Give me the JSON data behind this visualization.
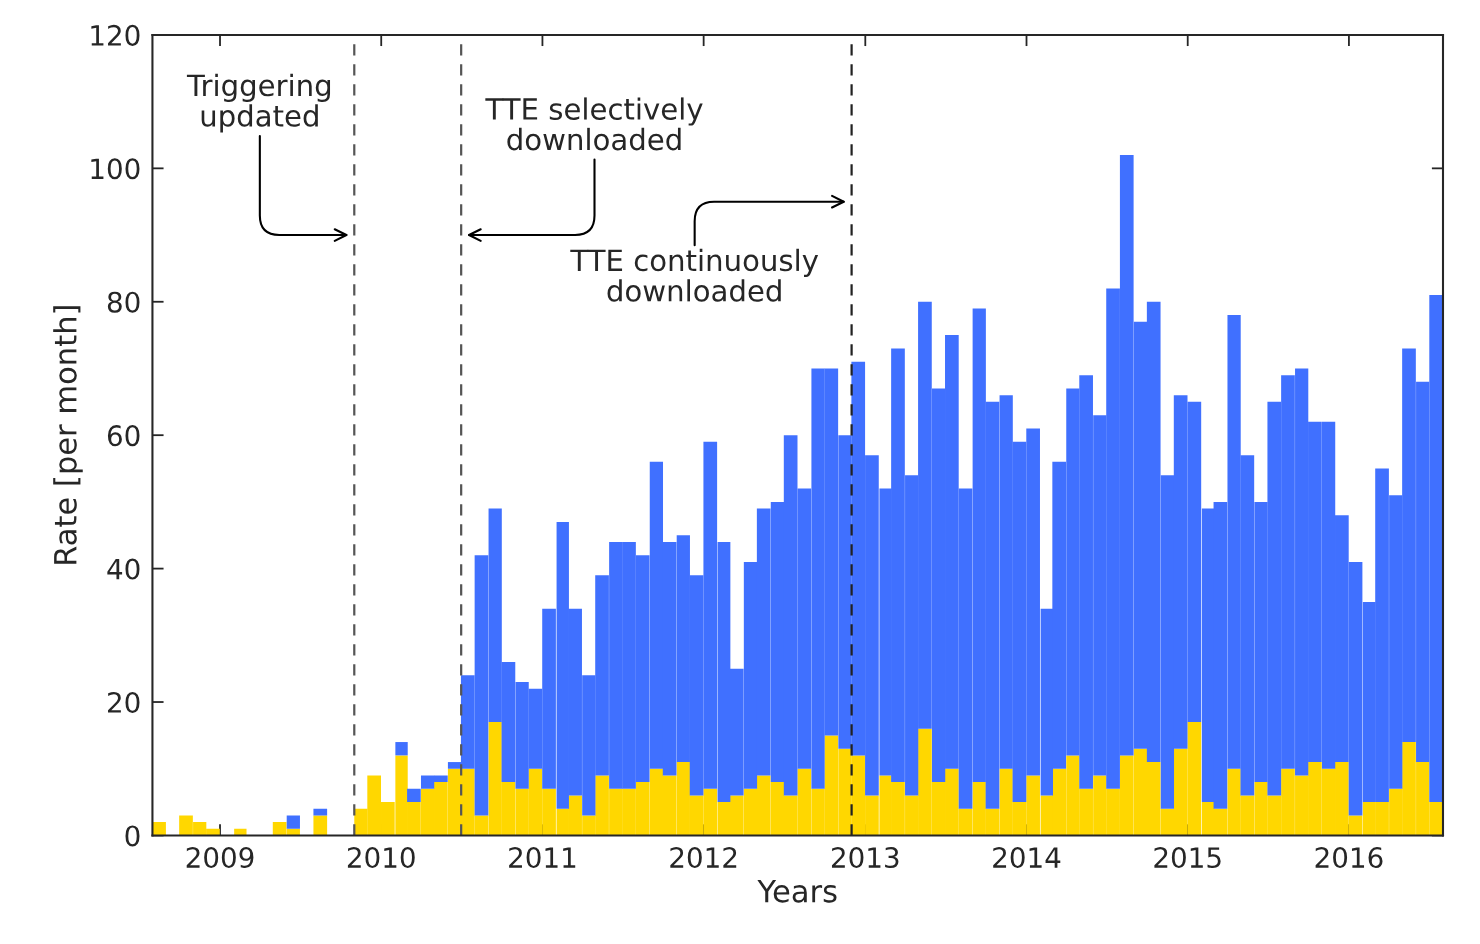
{
  "chart_data": {
    "type": "bar",
    "xlabel": "Years",
    "ylabel": "Rate [per month]",
    "x": [
      "2008-08-16",
      "2008-09-16",
      "2008-10-16",
      "2008-11-16",
      "2008-12-16",
      "2009-01-16",
      "2009-02-16",
      "2009-03-16",
      "2009-04-16",
      "2009-05-16",
      "2009-06-16",
      "2009-07-16",
      "2009-08-16",
      "2009-09-16",
      "2009-10-16",
      "2009-11-16",
      "2009-12-16",
      "2010-01-16",
      "2010-02-16",
      "2010-03-16",
      "2010-04-16",
      "2010-05-16",
      "2010-06-16",
      "2010-07-16",
      "2010-08-16",
      "2010-09-16",
      "2010-10-16",
      "2010-11-16",
      "2010-12-16",
      "2011-01-16",
      "2011-02-16",
      "2011-03-16",
      "2011-04-16",
      "2011-05-16",
      "2011-06-16",
      "2011-07-16",
      "2011-08-16",
      "2011-09-16",
      "2011-10-16",
      "2011-11-16",
      "2011-12-16",
      "2012-01-16",
      "2012-02-16",
      "2012-03-16",
      "2012-04-16",
      "2012-05-16",
      "2012-06-16",
      "2012-07-16",
      "2012-08-16",
      "2012-09-16",
      "2012-10-16",
      "2012-11-16",
      "2012-12-16",
      "2013-01-16",
      "2013-02-16",
      "2013-03-16",
      "2013-04-16",
      "2013-05-16",
      "2013-06-16",
      "2013-07-16",
      "2013-08-16",
      "2013-09-16",
      "2013-10-16",
      "2013-11-16",
      "2013-12-16",
      "2014-01-16",
      "2014-02-16",
      "2014-03-16",
      "2014-04-16",
      "2014-05-16",
      "2014-06-16",
      "2014-07-16",
      "2014-08-16",
      "2014-09-16",
      "2014-10-16",
      "2014-11-16",
      "2014-12-16",
      "2015-01-16",
      "2015-02-16",
      "2015-03-16",
      "2015-04-16",
      "2015-05-16",
      "2015-06-16",
      "2015-07-16",
      "2015-08-16",
      "2015-09-16",
      "2015-10-16",
      "2015-11-16",
      "2015-12-16",
      "2016-01-16",
      "2016-02-16",
      "2016-03-16",
      "2016-04-16",
      "2016-05-16",
      "2016-06-16",
      "2016-07-16"
    ],
    "stacked": true,
    "series": [
      {
        "color": "#ffd700",
        "values": [
          2,
          0,
          3,
          2,
          1,
          0,
          1,
          0,
          0,
          2,
          1,
          0,
          3,
          0,
          0,
          4,
          9,
          5,
          12,
          5,
          7,
          8,
          10,
          10,
          3,
          17,
          8,
          7,
          10,
          7,
          4,
          6,
          3,
          9,
          7,
          7,
          8,
          10,
          9,
          11,
          6,
          7,
          5,
          6,
          7,
          9,
          8,
          6,
          10,
          7,
          15,
          13,
          12,
          6,
          9,
          8,
          6,
          16,
          8,
          10,
          4,
          8,
          4,
          10,
          5,
          9,
          6,
          10,
          12,
          7,
          9,
          7,
          12,
          13,
          11,
          4,
          13,
          17,
          5,
          4,
          10,
          6,
          8,
          6,
          10,
          9,
          11,
          10,
          11,
          3,
          5,
          5,
          7,
          14,
          11,
          5
        ]
      },
      {
        "color": "#4070ff",
        "values": [
          0,
          0,
          0,
          0,
          0,
          0,
          0,
          0,
          0,
          0,
          2,
          0,
          1,
          0,
          0,
          0,
          0,
          0,
          2,
          2,
          2,
          1,
          1,
          14,
          39,
          32,
          18,
          16,
          12,
          27,
          43,
          28,
          21,
          30,
          37,
          37,
          34,
          46,
          35,
          34,
          33,
          52,
          39,
          19,
          34,
          40,
          42,
          54,
          42,
          63,
          55,
          47,
          59,
          51,
          43,
          65,
          48,
          64,
          59,
          65,
          48,
          71,
          61,
          56,
          54,
          52,
          28,
          46,
          55,
          62,
          54,
          75,
          90,
          64,
          69,
          50,
          53,
          48,
          44,
          46,
          68,
          51,
          42,
          59,
          59,
          61,
          51,
          52,
          37,
          38,
          30,
          50,
          44,
          59,
          57,
          76
        ]
      }
    ],
    "xlim": [
      "2008-08",
      "2016-08"
    ],
    "ylim": [
      0,
      120
    ],
    "xticks": [
      {
        "value": "2009",
        "label": "2009"
      },
      {
        "value": "2010",
        "label": "2010"
      },
      {
        "value": "2011",
        "label": "2011"
      },
      {
        "value": "2012",
        "label": "2012"
      },
      {
        "value": "2013",
        "label": "2013"
      },
      {
        "value": "2014",
        "label": "2014"
      },
      {
        "value": "2015",
        "label": "2015"
      },
      {
        "value": "2016",
        "label": "2016"
      }
    ],
    "yticks": [
      0,
      20,
      40,
      60,
      80,
      100,
      120
    ],
    "ref_lines": [
      {
        "axis": "x",
        "value": "2009-11",
        "color": "#555555",
        "line_style": "dashed"
      },
      {
        "axis": "x",
        "value": "2010-07",
        "color": "#555555",
        "line_style": "dashed"
      },
      {
        "axis": "x",
        "value": "2012-12",
        "color": "#222222",
        "line_style": "dashed"
      }
    ],
    "annotations": [
      "Triggering\nupdated",
      "TTE selectively\ndownloaded",
      {
        "text": "TTE continuously\ndownloaded",
        "x": "2012-12",
        "y": 95
      }
    ]
  }
}
